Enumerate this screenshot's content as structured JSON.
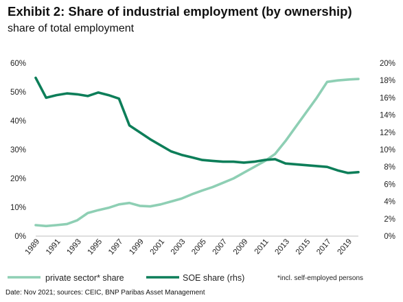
{
  "title": "Exhibit 2: Share of industrial employment (by ownership)",
  "subtitle": "share of total employment",
  "footer": "Date: Nov 2021; sources: CEIC, BNP Paribas Asset Management",
  "note": "*incl. self-employed persons",
  "colors": {
    "private": "#8ecfb4",
    "soe": "#0d7e59",
    "axis": "#bdbdbd"
  },
  "chart_data": {
    "type": "line",
    "x": [
      1989,
      1990,
      1991,
      1992,
      1993,
      1994,
      1995,
      1996,
      1997,
      1998,
      1999,
      2000,
      2001,
      2002,
      2003,
      2004,
      2005,
      2006,
      2007,
      2008,
      2009,
      2010,
      2011,
      2012,
      2013,
      2014,
      2015,
      2016,
      2017,
      2018,
      2019,
      2020
    ],
    "xticks": [
      "1989",
      "1991",
      "1993",
      "1995",
      "1997",
      "1999",
      "2001",
      "2003",
      "2005",
      "2007",
      "2009",
      "2011",
      "2013",
      "2015",
      "2017",
      "2019"
    ],
    "y_left": {
      "lim": [
        0,
        60
      ],
      "ticks": [
        "0%",
        "10%",
        "20%",
        "30%",
        "40%",
        "50%",
        "60%"
      ]
    },
    "y_right": {
      "lim": [
        0,
        20
      ],
      "ticks": [
        "0%",
        "2%",
        "4%",
        "6%",
        "8%",
        "10%",
        "12%",
        "14%",
        "16%",
        "18%",
        "20%"
      ]
    },
    "series": [
      {
        "name": "private sector* share",
        "axis": "left",
        "values": [
          3.8,
          3.5,
          3.8,
          4.2,
          5.5,
          8.0,
          9.0,
          9.8,
          11.0,
          11.5,
          10.5,
          10.3,
          11.0,
          12.0,
          13.0,
          14.5,
          15.8,
          17.0,
          18.5,
          20.0,
          22.0,
          24.0,
          26.0,
          28.5,
          33.0,
          38.0,
          43.0,
          48.0,
          53.5,
          54.0,
          54.3,
          54.5
        ]
      },
      {
        "name": "SOE share (rhs)",
        "axis": "right",
        "values": [
          18.3,
          16.0,
          16.3,
          16.5,
          16.4,
          16.2,
          16.6,
          16.3,
          15.9,
          12.8,
          12.0,
          11.2,
          10.5,
          9.8,
          9.4,
          9.1,
          8.8,
          8.7,
          8.6,
          8.6,
          8.5,
          8.6,
          8.8,
          8.9,
          8.4,
          8.3,
          8.2,
          8.1,
          8.0,
          7.6,
          7.3,
          7.4
        ]
      }
    ]
  }
}
